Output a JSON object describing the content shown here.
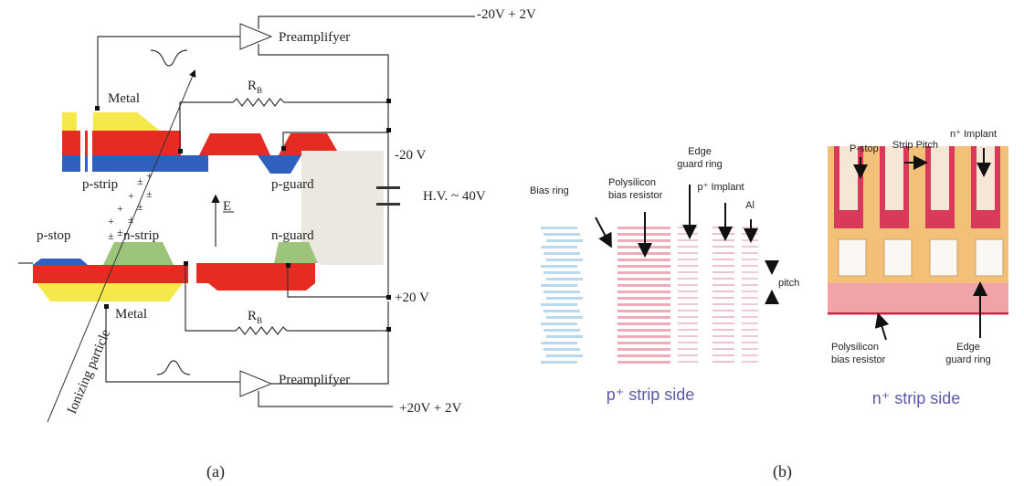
{
  "panel_a": {
    "supply_top": "-20V + 2V",
    "preamp_top": "Preamplifyer",
    "metal_top": "Metal",
    "rb_top": {
      "main": "R",
      "sub": "B"
    },
    "bias_top": "-20 V",
    "p_strip": "p-strip",
    "p_guard": "p-guard",
    "field": "E",
    "hv": "H.V. ~ 40V",
    "p_stop": "p-stop",
    "n_strip": "n-strip",
    "n_guard": "n-guard",
    "bias_bottom": "+20 V",
    "metal_bottom": "Metal",
    "rb_bottom": {
      "main": "R",
      "sub": "B"
    },
    "particle": "Ionizing particle",
    "preamp_bottom": "Preamplifyer",
    "supply_bottom": "+20V + 2V",
    "charges": [
      "±",
      "±",
      "+",
      "±",
      "+",
      "±",
      "+",
      "±",
      "+",
      "±"
    ],
    "caption": "(a)"
  },
  "panel_b": {
    "bias_ring": "Bias ring",
    "poly_left": [
      "Polysilicon",
      "bias resistor"
    ],
    "edge_left": [
      "Edge",
      "guard ring"
    ],
    "p_implant": "p⁺ Implant",
    "al": "Al",
    "pitch": "pitch",
    "p_side": "p⁺ strip side",
    "p_stop": "P-stop",
    "strip_pitch": "Strip Pitch",
    "n_implant": "n⁺ Implant",
    "poly_right": [
      "Polysilicon",
      "bias resistor"
    ],
    "edge_right": [
      "Edge",
      "guard ring"
    ],
    "n_side": "n⁺ strip side",
    "caption": "(b)"
  }
}
